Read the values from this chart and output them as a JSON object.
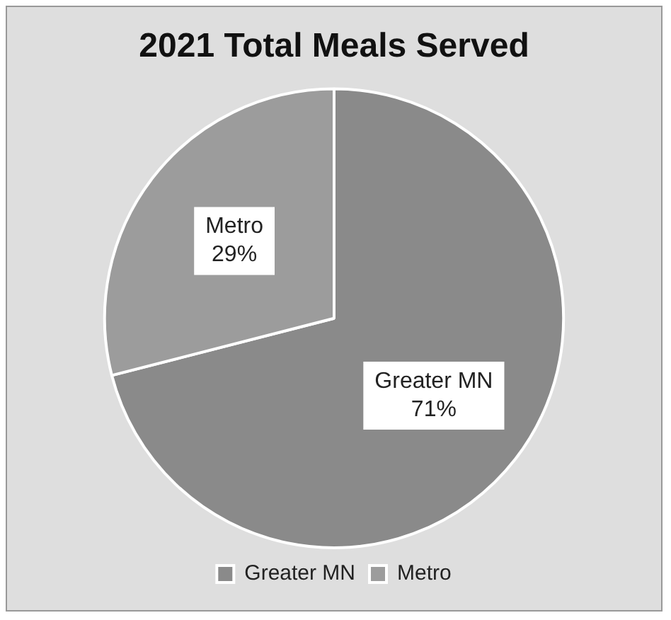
{
  "chart_data": {
    "type": "pie",
    "title": "2021 Total Meals Served",
    "categories": [
      "Greater MN",
      "Metro"
    ],
    "values": [
      71,
      29
    ],
    "colors": [
      "#8a8a8a",
      "#9c9c9c"
    ],
    "value_labels": [
      "71%",
      "29%"
    ],
    "legend": "bottom"
  }
}
